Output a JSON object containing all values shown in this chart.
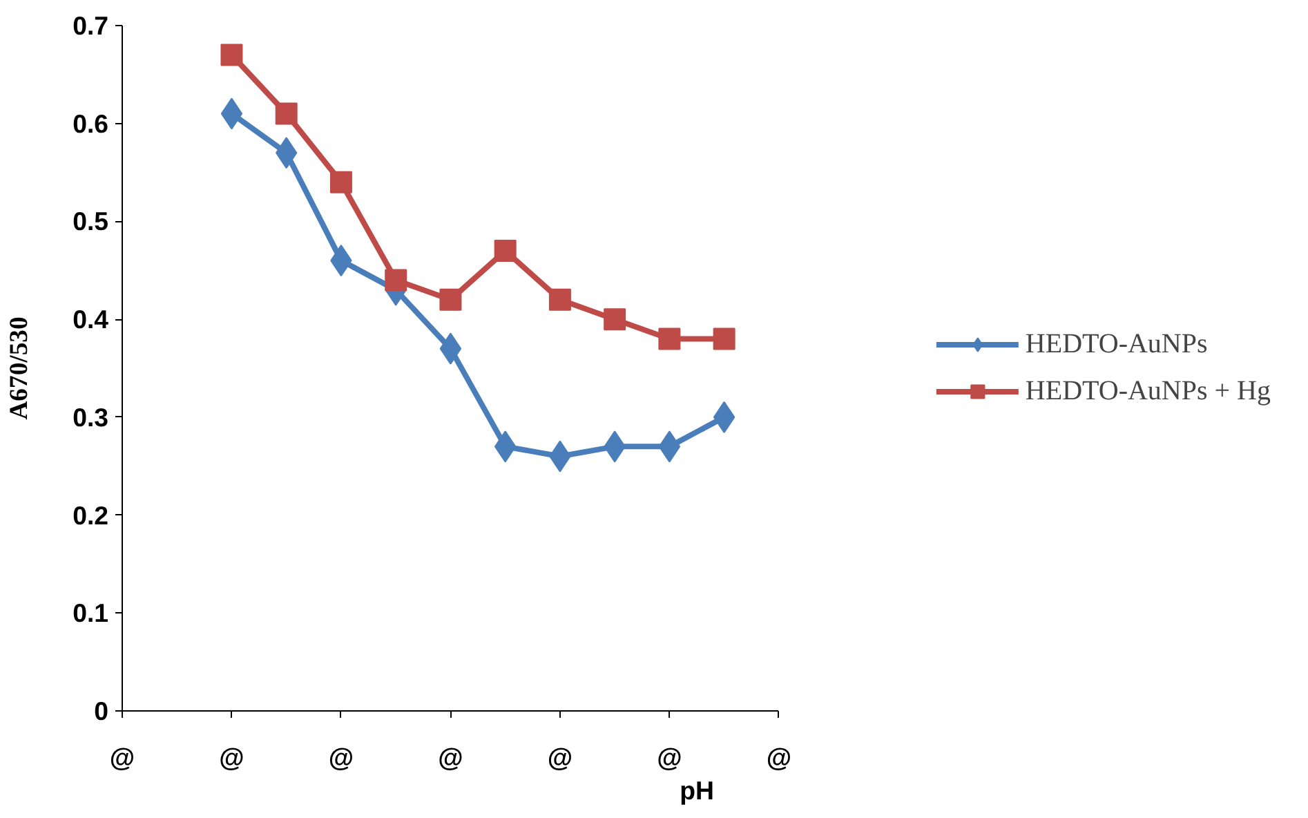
{
  "chart_data": {
    "type": "line",
    "xlabel": "pH",
    "ylabel": "A670/530",
    "categories": [
      "@",
      null,
      "@",
      null,
      "@",
      null,
      "@",
      null,
      "@",
      null,
      "@",
      null,
      "@"
    ],
    "ylim": [
      0,
      0.7
    ],
    "yticks": [
      {
        "value": 0,
        "label": "0"
      },
      0.1,
      0.2,
      0.3,
      0.4,
      0.5,
      0.6,
      0.7
    ],
    "series": [
      {
        "name": "HEDTO-AuNPs",
        "color": "#4a7ebb",
        "values": [
          null,
          null,
          0.61,
          0.57,
          0.46,
          0.43,
          0.37,
          0.27,
          0.26,
          0.27,
          0.27,
          0.3,
          null
        ],
        "marker": "diamond"
      },
      {
        "name": "HEDTO-AuNPs + Hg",
        "color": "#be4b48",
        "values": [
          null,
          null,
          0.67,
          0.61,
          0.54,
          0.44,
          0.42,
          0.47,
          0.42,
          0.4,
          0.38,
          0.38,
          null
        ],
        "marker": "square"
      }
    ],
    "grid": false,
    "legend": "right",
    "line_style": "solid"
  }
}
